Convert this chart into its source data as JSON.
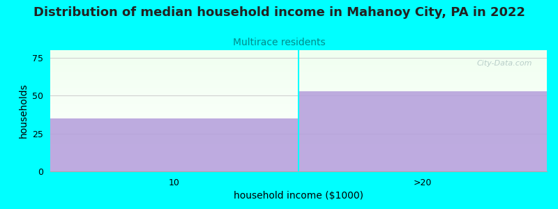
{
  "title": "Distribution of median household income in Mahanoy City, PA in 2022",
  "subtitle": "Multirace residents",
  "categories": [
    "10",
    ">20"
  ],
  "values": [
    35,
    53
  ],
  "bar_color": "#b39ddb",
  "bar_alpha": 0.85,
  "background_color": "#00ffff",
  "xlabel": "household income ($1000)",
  "ylabel": "households",
  "ylim": [
    0,
    80
  ],
  "yticks": [
    0,
    25,
    50,
    75
  ],
  "watermark": "City-Data.com",
  "title_fontsize": 13,
  "subtitle_fontsize": 10,
  "subtitle_color": "#008b8b",
  "axis_label_fontsize": 10,
  "tick_fontsize": 9
}
